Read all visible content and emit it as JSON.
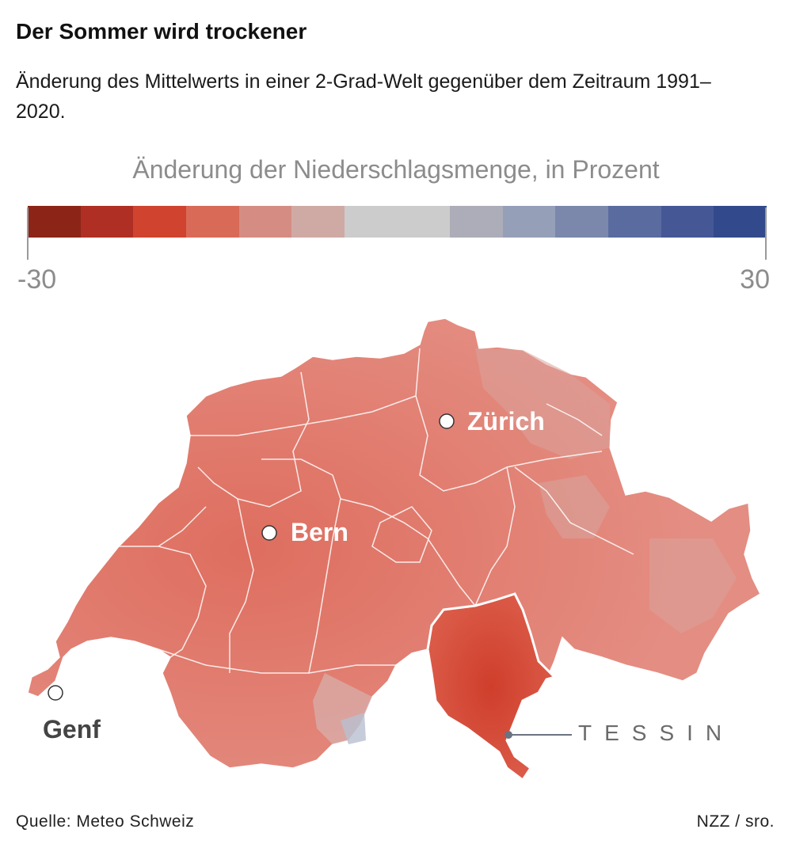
{
  "header": {
    "title": "Der Sommer wird trockener",
    "subtitle": "Änderung des Mittelwerts in einer 2-Grad-Welt gegenüber dem Zeitraum 1991–2020."
  },
  "legend": {
    "title": "Änderung der Niederschlagsmenge, in Prozent",
    "min_label": "-30",
    "max_label": "30",
    "min_value": -30,
    "max_value": 30,
    "colors": [
      "#8c2518",
      "#b02f24",
      "#d0432f",
      "#d96a58",
      "#d58d83",
      "#cfaaa5",
      "#cccccc",
      "#cccccc",
      "#acadb8",
      "#959fb8",
      "#7b88ac",
      "#5a6ba0",
      "#455795",
      "#324a8c"
    ]
  },
  "map": {
    "cities": [
      {
        "name": "Zürich"
      },
      {
        "name": "Bern"
      },
      {
        "name": "Genf"
      }
    ],
    "region_label": "TESSIN"
  },
  "footer": {
    "source": "Quelle: Meteo Schweiz",
    "credit": "NZZ / sro."
  }
}
